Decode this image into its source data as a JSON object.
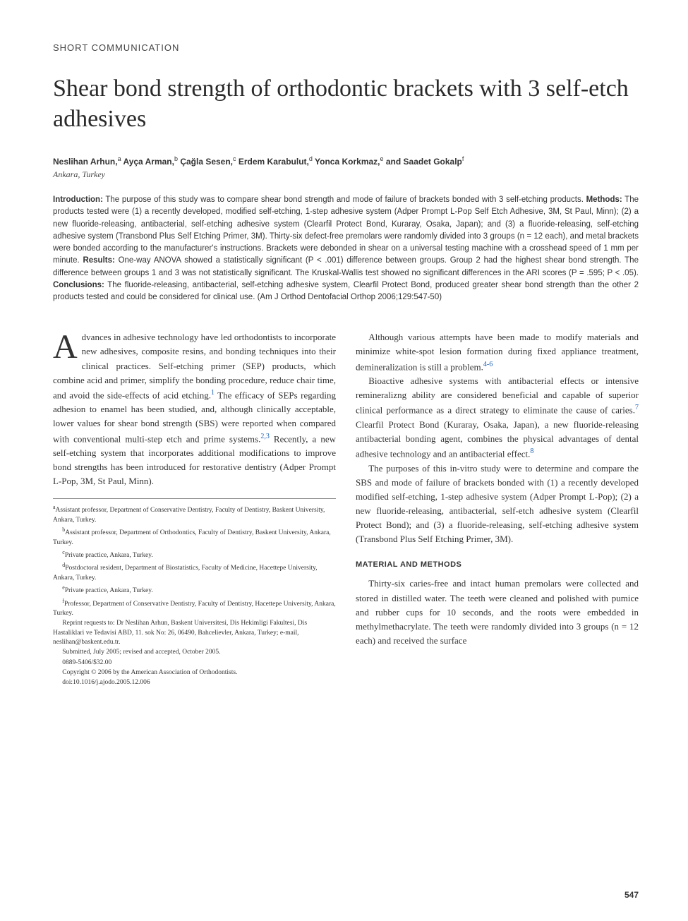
{
  "article_type": "SHORT COMMUNICATION",
  "title": "Shear bond strength of orthodontic brackets with 3 self-etch adhesives",
  "authors_html": "Neslihan Arhun,<sup>a</sup> Ayça Arman,<sup>b</sup> Çağla Sesen,<sup>c</sup> Erdem Karabulut,<sup>d</sup> Yonca Korkmaz,<sup>e</sup> and Saadet Gokalp<sup>f</sup>",
  "affiliation": "Ankara, Turkey",
  "abstract": {
    "intro_label": "Introduction:",
    "intro": " The purpose of this study was to compare shear bond strength and mode of failure of brackets bonded with 3 self-etching products. ",
    "methods_label": "Methods:",
    "methods": " The products tested were (1) a recently developed, modified self-etching, 1-step adhesive system (Adper Prompt L-Pop Self Etch Adhesive, 3M, St Paul, Minn); (2) a new fluoride-releasing, antibacterial, self-etching adhesive system (Clearfil Protect Bond, Kuraray, Osaka, Japan); and (3) a fluoride-releasing, self-etching adhesive system (Transbond Plus Self Etching Primer, 3M). Thirty-six defect-free premolars were randomly divided into 3 groups (n = 12 each), and metal brackets were bonded according to the manufacturer's instructions. Brackets were debonded in shear on a universal testing machine with a crosshead speed of 1 mm per minute. ",
    "results_label": "Results:",
    "results": " One-way ANOVA showed a statistically significant (P < .001) difference between groups. Group 2 had the highest shear bond strength. The difference between groups 1 and 3 was not statistically significant. The Kruskal-Wallis test showed no significant differences in the ARI scores (P = .595; P < .05). ",
    "conclusions_label": "Conclusions:",
    "conclusions": " The fluoride-releasing, antibacterial, self-etching adhesive system, Clearfil Protect Bond, produced greater shear bond strength than the other 2 products tested and could be considered for clinical use. (Am J Orthod Dentofacial Orthop 2006;129:547-50)"
  },
  "body": {
    "col1": {
      "p1a": "Advances in adhesive technology have led orthodontists to incorporate new adhesives, composite resins, and bonding techniques into their clinical practices. Self-etching primer (SEP) products, which combine acid and primer, simplify the bonding procedure, reduce chair time, and avoid the side-effects of acid etching.",
      "ref1": "1",
      "p1b": " The efficacy of SEPs regarding adhesion to enamel has been studied, and, although clinically acceptable, lower values for shear bond strength (SBS) were reported when compared with conventional multi-step etch and prime systems.",
      "ref2": "2,3",
      "p1c": " Recently, a new self-etching system that incorporates additional modifications to improve bond strengths has been introduced for restorative dentistry (Adper Prompt L-Pop, 3M, St Paul, Minn)."
    },
    "col2": {
      "p1a": "Although various attempts have been made to modify materials and minimize white-spot lesion formation during fixed appliance treatment, demineralization is still a problem.",
      "ref4": "4-6",
      "p2a": "Bioactive adhesive systems with antibacterial effects or intensive remineralizng ability are considered beneficial and capable of superior clinical performance as a direct strategy to eliminate the cause of caries.",
      "ref7": "7",
      "p2b": " Clearfil Protect Bond (Kuraray, Osaka, Japan), a new fluoride-releasing antibacterial bonding agent, combines the physical advantages of dental adhesive technology and an antibacterial effect.",
      "ref8": "8",
      "p3": "The purposes of this in-vitro study were to determine and compare the SBS and mode of failure of brackets bonded with (1) a recently developed modified self-etching, 1-step adhesive system (Adper Prompt L-Pop); (2) a new fluoride-releasing, antibacterial, self-etch adhesive system (Clearfil Protect Bond); and (3) a fluoride-releasing, self-etching adhesive system (Transbond Plus Self Etching Primer, 3M).",
      "section_head": "MATERIAL AND METHODS",
      "p4": "Thirty-six caries-free and intact human premolars were collected and stored in distilled water. The teeth were cleaned and polished with pumice and rubber cups for 10 seconds, and the roots were embedded in methylmethacrylate. The teeth were randomly divided into 3 groups (n = 12 each) and received the surface"
    }
  },
  "footnotes": {
    "a": "Assistant professor, Department of Conservative Dentistry, Faculty of Dentistry, Baskent University, Ankara, Turkey.",
    "b": "Assistant professor, Department of Orthodontics, Faculty of Dentistry, Baskent University, Ankara, Turkey.",
    "c": "Private practice, Ankara, Turkey.",
    "d": "Postdoctoral resident, Department of Biostatistics, Faculty of Medicine, Hacettepe University, Ankara, Turkey.",
    "e": "Private practice, Ankara, Turkey.",
    "f": "Professor, Department of Conservative Dentistry, Faculty of Dentistry, Hacettepe University, Ankara, Turkey.",
    "reprint": "Reprint requests to: Dr Neslihan Arhun, Baskent Universitesi, Dis Hekimligi Fakultesi, Dis Hastaliklari ve Tedavisi ABD, 11. sok No: 26, 06490, Bahcelievler, Ankara, Turkey; e-mail, neslihan@baskent.edu.tr.",
    "submitted": "Submitted, July 2005; revised and accepted, October 2005.",
    "issn": "0889-5406/$32.00",
    "copyright": "Copyright © 2006 by the American Association of Orthodontists.",
    "doi": "doi:10.1016/j.ajodo.2005.12.006"
  },
  "page_number": "547",
  "colors": {
    "text": "#333333",
    "ref_link": "#1a5fb4",
    "background": "#ffffff"
  },
  "typography": {
    "title_fontsize": 34,
    "body_fontsize": 13,
    "abstract_fontsize": 11.5,
    "footnote_fontsize": 9.5,
    "dropcap_fontsize": 48
  }
}
